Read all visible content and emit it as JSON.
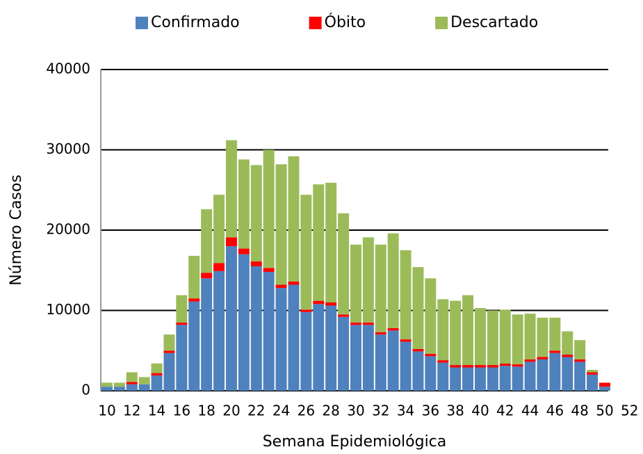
{
  "chart_data": {
    "type": "bar",
    "stacked": true,
    "x_label": "Semana Epidemiológica",
    "y_label": "Número Casos",
    "categories": [
      10,
      null,
      12,
      null,
      14,
      null,
      16,
      null,
      18,
      null,
      20,
      null,
      22,
      null,
      24,
      null,
      26,
      null,
      28,
      null,
      30,
      null,
      32,
      null,
      34,
      null,
      36,
      null,
      38,
      null,
      40,
      null,
      42,
      null,
      44,
      null,
      46,
      null,
      48,
      null,
      50,
      null,
      52
    ],
    "series": [
      {
        "name": "Confirmado",
        "color": "#4f81bd",
        "values": [
          500,
          500,
          800,
          800,
          1900,
          4700,
          8200,
          11100,
          14000,
          14900,
          18000,
          17000,
          15500,
          14800,
          12800,
          13200,
          9800,
          10800,
          10600,
          9200,
          8200,
          8200,
          7000,
          7500,
          6100,
          4900,
          4300,
          3500,
          2900,
          2900,
          2900,
          2900,
          3100,
          3000,
          3600,
          3900,
          4700,
          4200,
          3600,
          2000,
          500,
          null,
          null
        ]
      },
      {
        "name": "Óbito",
        "color": "#ff0000",
        "values": [
          0,
          0,
          300,
          0,
          300,
          300,
          300,
          400,
          700,
          1000,
          1100,
          700,
          600,
          500,
          400,
          400,
          300,
          400,
          400,
          300,
          300,
          300,
          300,
          300,
          300,
          300,
          300,
          300,
          300,
          300,
          300,
          300,
          300,
          300,
          300,
          300,
          300,
          300,
          300,
          300,
          500,
          null,
          null
        ]
      },
      {
        "name": "Descartado",
        "color": "#9bbb59",
        "values": [
          500,
          500,
          1200,
          900,
          1200,
          2000,
          3400,
          5300,
          7900,
          8500,
          12100,
          11100,
          12000,
          14700,
          15000,
          15600,
          14300,
          14500,
          14900,
          12600,
          9700,
          10600,
          10900,
          11800,
          11100,
          10200,
          9400,
          7600,
          8000,
          8700,
          7100,
          6800,
          6700,
          6200,
          5700,
          4900,
          4100,
          2900,
          2400,
          300,
          0,
          null,
          null
        ]
      }
    ],
    "ylim": [
      0,
      40000
    ],
    "yticks": [
      0,
      10000,
      20000,
      30000,
      40000
    ],
    "grid": true,
    "legend": "top"
  }
}
